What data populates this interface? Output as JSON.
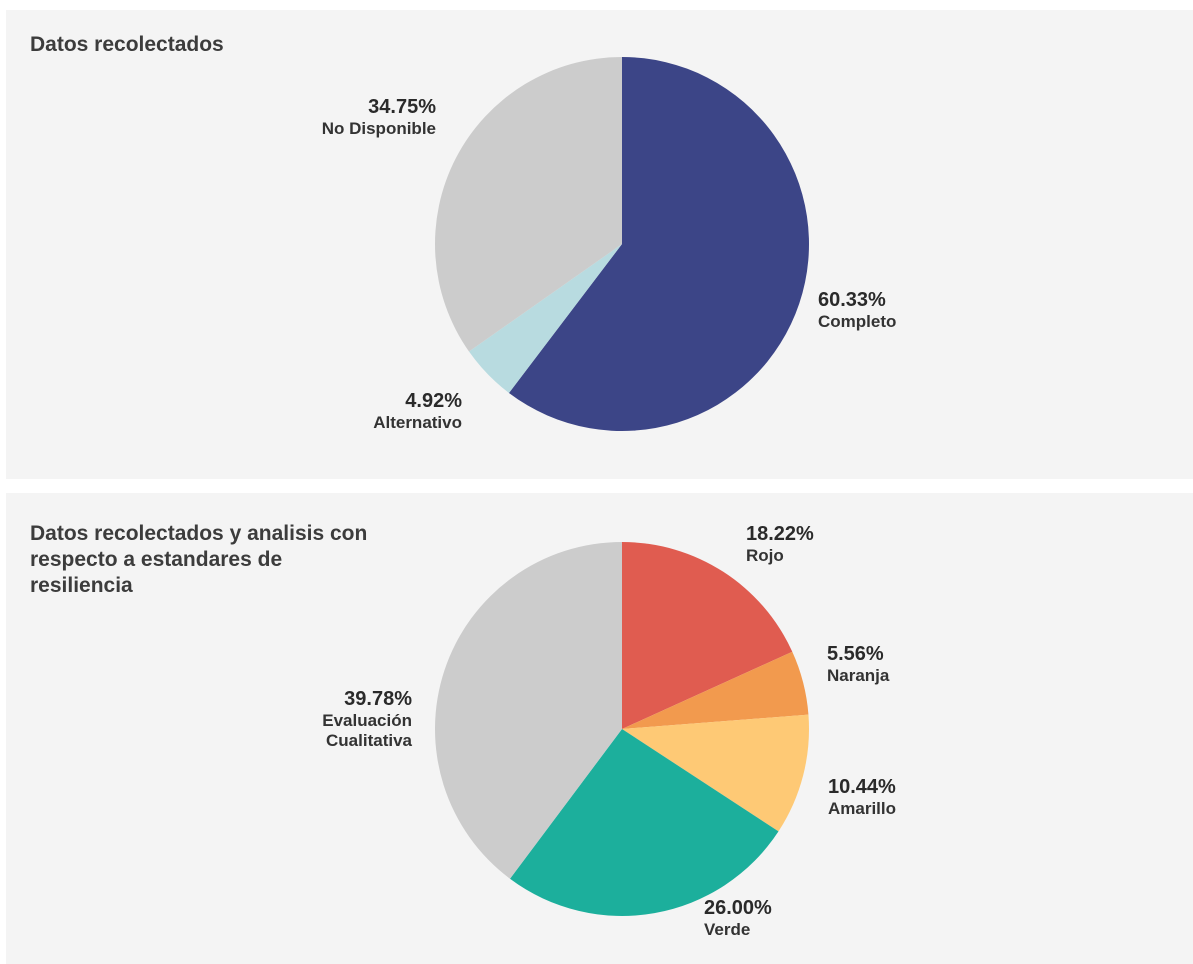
{
  "chart_data": [
    {
      "type": "pie",
      "title": "Datos recolectados",
      "slices": [
        {
          "label": "Completo",
          "value": 60.33,
          "value_label": "60.33%",
          "color": "#3c4587"
        },
        {
          "label": "Alternativo",
          "value": 4.92,
          "value_label": "4.92%",
          "color": "#b8dbe0"
        },
        {
          "label": "No Disponible",
          "value": 34.75,
          "value_label": "34.75%",
          "color": "#cccccc"
        }
      ]
    },
    {
      "type": "pie",
      "title": "Datos recolectados y analisis con respecto a estandares de resiliencia",
      "slices": [
        {
          "label": "Rojo",
          "value": 18.22,
          "value_label": "18.22%",
          "color": "#e05c50"
        },
        {
          "label": "Naranja",
          "value": 5.56,
          "value_label": "5.56%",
          "color": "#f29a4e"
        },
        {
          "label": "Amarillo",
          "value": 10.44,
          "value_label": "10.44%",
          "color": "#fec975"
        },
        {
          "label": "Verde",
          "value": 26.0,
          "value_label": "26.00%",
          "color": "#1caf9c"
        },
        {
          "label": "Evaluación Cualitativa",
          "value": 39.78,
          "value_label": "39.78%",
          "color": "#cccccc"
        }
      ]
    }
  ]
}
